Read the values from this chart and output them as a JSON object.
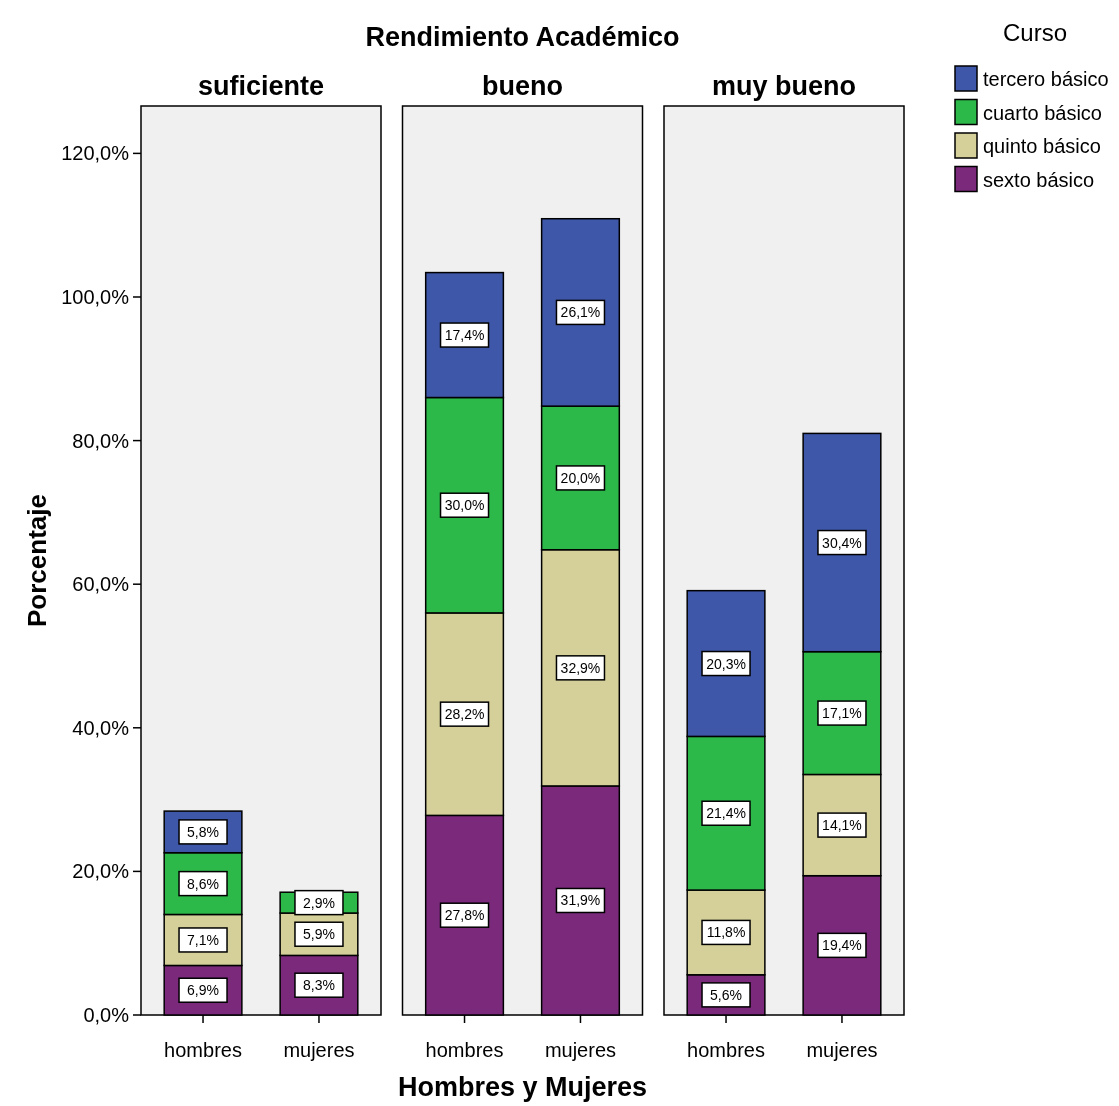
{
  "chart_data": [
    {
      "type": "bar",
      "title": "suficiente",
      "ylabel": "Porcentaje",
      "categories": [
        "hombres",
        "mujeres"
      ],
      "stacked": true,
      "ylim": [
        0,
        126.6
      ],
      "yticks": [
        {
          "value": 0,
          "label": "0,0%"
        },
        {
          "value": 20,
          "label": "20,0%"
        },
        {
          "value": 40,
          "label": "40,0%"
        },
        {
          "value": 60,
          "label": "60,0%"
        },
        {
          "value": 80,
          "label": "80,0%"
        },
        {
          "value": 100,
          "label": "100,0%"
        },
        {
          "value": 120,
          "label": "120,0%"
        }
      ],
      "legend": false,
      "series": [
        {
          "color": "#7b2a7b",
          "values": [
            6.9,
            8.3
          ],
          "value_labels": [
            "6,9%",
            "8,3%"
          ]
        },
        {
          "color": "#d5d09a",
          "values": [
            7.1,
            5.9
          ],
          "value_labels": [
            "7,1%",
            "5,9%"
          ]
        },
        {
          "color": "#2db84a",
          "values": [
            8.6,
            2.9
          ],
          "value_labels": [
            "8,6%",
            "2,9%"
          ]
        },
        {
          "color": "#3f57a8",
          "values": [
            5.8,
            null
          ],
          "value_labels": [
            "5,8%",
            null
          ]
        }
      ]
    },
    {
      "type": "bar",
      "title": "bueno",
      "annotations": [
        "Rendimiento Académico"
      ],
      "xlabel": "Hombres y Mujeres",
      "categories": [
        "hombres",
        "mujeres"
      ],
      "stacked": true,
      "ylim": [
        0,
        126.6
      ],
      "tick_labels": "x",
      "legend": false,
      "series": [
        {
          "color": "#7b2a7b",
          "values": [
            27.8,
            31.9
          ],
          "value_labels": [
            "27,8%",
            "31,9%"
          ]
        },
        {
          "color": "#d5d09a",
          "values": [
            28.2,
            32.9
          ],
          "value_labels": [
            "28,2%",
            "32,9%"
          ]
        },
        {
          "color": "#2db84a",
          "values": [
            30.0,
            20.0
          ],
          "value_labels": [
            "30,0%",
            "20,0%"
          ]
        },
        {
          "color": "#3f57a8",
          "values": [
            17.4,
            26.1
          ],
          "value_labels": [
            "17,4%",
            "26,1%"
          ]
        }
      ]
    },
    {
      "type": "bar",
      "title": "muy bueno",
      "categories": [
        "hombres",
        "mujeres"
      ],
      "stacked": true,
      "ylim": [
        0,
        126.6
      ],
      "tick_labels": "x",
      "legend": "right",
      "legend_title": "Curso",
      "series": [
        {
          "name": "sexto básico",
          "color": "#7b2a7b",
          "values": [
            5.6,
            19.4
          ],
          "value_labels": [
            "5,6%",
            "19,4%"
          ]
        },
        {
          "name": "quinto básico",
          "color": "#d5d09a",
          "values": [
            11.8,
            14.1
          ],
          "value_labels": [
            "11,8%",
            "14,1%"
          ]
        },
        {
          "name": "cuarto básico",
          "color": "#2db84a",
          "values": [
            21.4,
            17.1
          ],
          "value_labels": [
            "21,4%",
            "17,1%"
          ]
        },
        {
          "name": "tercero básico",
          "color": "#3f57a8",
          "values": [
            20.3,
            30.4
          ],
          "value_labels": [
            "20,3%",
            "30,4%"
          ]
        }
      ]
    }
  ]
}
